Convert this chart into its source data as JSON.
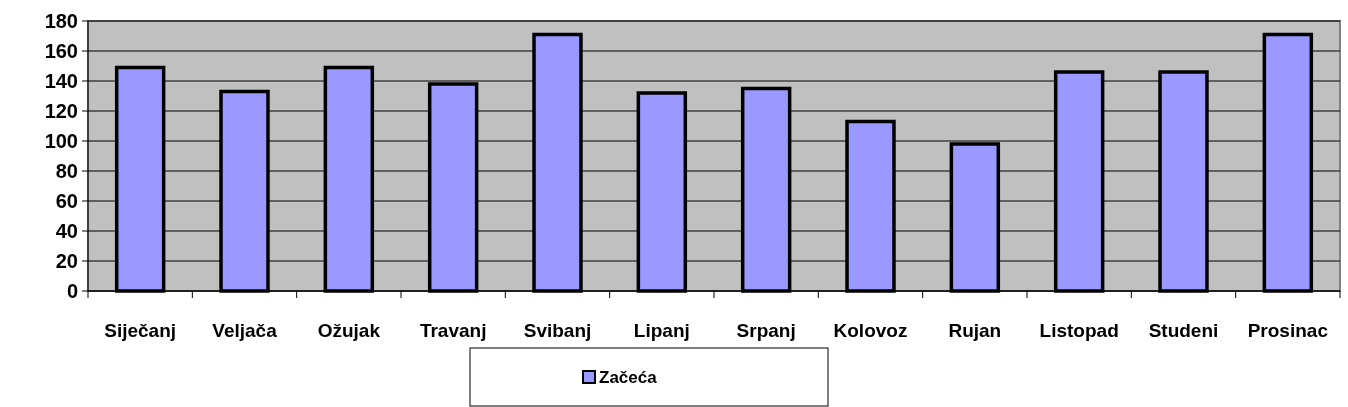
{
  "chart_data": {
    "type": "bar",
    "categories": [
      "Siječanj",
      "Veljača",
      "Ožujak",
      "Travanj",
      "Svibanj",
      "Lipanj",
      "Srpanj",
      "Kolovoz",
      "Rujan",
      "Listopad",
      "Studeni",
      "Prosinac"
    ],
    "series": [
      {
        "name": "Začeća",
        "color": "#9999ff",
        "values": [
          149,
          133,
          149,
          138,
          171,
          132,
          135,
          113,
          98,
          146,
          146,
          171
        ]
      }
    ],
    "ylim": [
      0,
      180
    ],
    "yticks": [
      0,
      20,
      40,
      60,
      80,
      100,
      120,
      140,
      160,
      180
    ],
    "grid": "y",
    "legend": "bottom"
  }
}
